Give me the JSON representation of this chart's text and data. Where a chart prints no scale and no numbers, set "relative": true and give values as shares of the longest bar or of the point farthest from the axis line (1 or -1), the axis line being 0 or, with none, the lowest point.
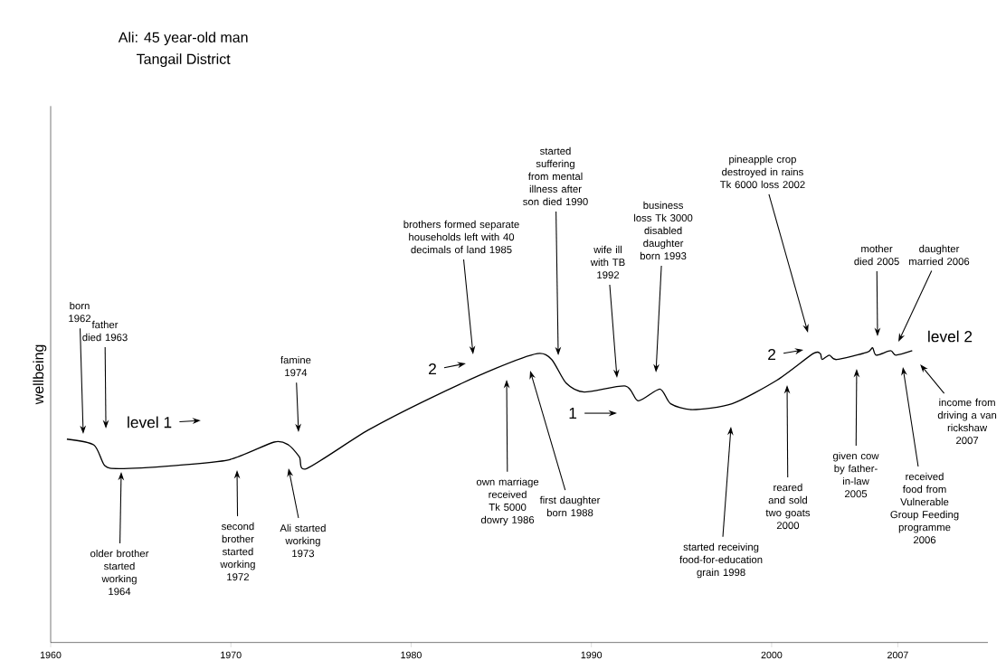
{
  "chart_data": {
    "type": "line",
    "title": "Ali: 45 year-old man",
    "subtitle": "Tangail District",
    "ylabel": "wellbeing",
    "relative": true,
    "color": "#000000",
    "x": [
      1960.9,
      1962.4,
      1963.0,
      1963.8,
      1966.8,
      1969.9,
      1972.4,
      1973.2,
      1973.8,
      1974.2,
      1977.6,
      1981.1,
      1984.7,
      1987.0,
      1987.8,
      1988.6,
      1989.6,
      1991.9,
      1992.6,
      1993.8,
      1994.4,
      1995.6,
      1997.8,
      2000.3,
      2002.3,
      2002.7,
      2002.8,
      2003.2,
      2003.6,
      2005.3,
      2005.6,
      2005.8,
      2006.6,
      2006.9,
      2007.8
    ],
    "values": [
      0.69,
      0.67,
      0.6,
      0.59,
      0.6,
      0.62,
      0.68,
      0.67,
      0.63,
      0.59,
      0.72,
      0.83,
      0.93,
      0.98,
      0.96,
      0.88,
      0.85,
      0.87,
      0.82,
      0.86,
      0.81,
      0.79,
      0.81,
      0.89,
      0.98,
      0.98,
      0.96,
      0.975,
      0.96,
      0.985,
      1,
      0.975,
      0.99,
      0.975,
      0.99
    ],
    "xlim": [
      1960,
      2012
    ],
    "xticks": [
      1960,
      1970,
      1980,
      1990,
      2000,
      2007
    ],
    "annotations": [
      "born 1962",
      "father died 1963",
      "famine 1974",
      "older brother started working 1964",
      "second brother started working 1972",
      "Ali started working 1973",
      "brothers formed separate households left with 40 decimals of land 1985",
      "2",
      "started suffering from mental illness after son died 1990",
      "own marriage received Tk 5000 dowry 1986",
      "first daughter born 1988",
      "wife ill with TB 1992",
      "1",
      "business loss Tk 3000 disabled daughter born 1993",
      "started receiving food-for-education grain 1998",
      "pineapple crop destroyed in rains Tk 6000 loss 2002",
      "2",
      "reared and sold two goats 2000",
      "given cow by father-in-law 2005",
      "mother died 2005",
      "daughter married 2006",
      "level 2",
      "level 1",
      "received food from Vulnerable Group Feeding programme 2006",
      "income from driving a van rickshaw 2007"
    ]
  }
}
